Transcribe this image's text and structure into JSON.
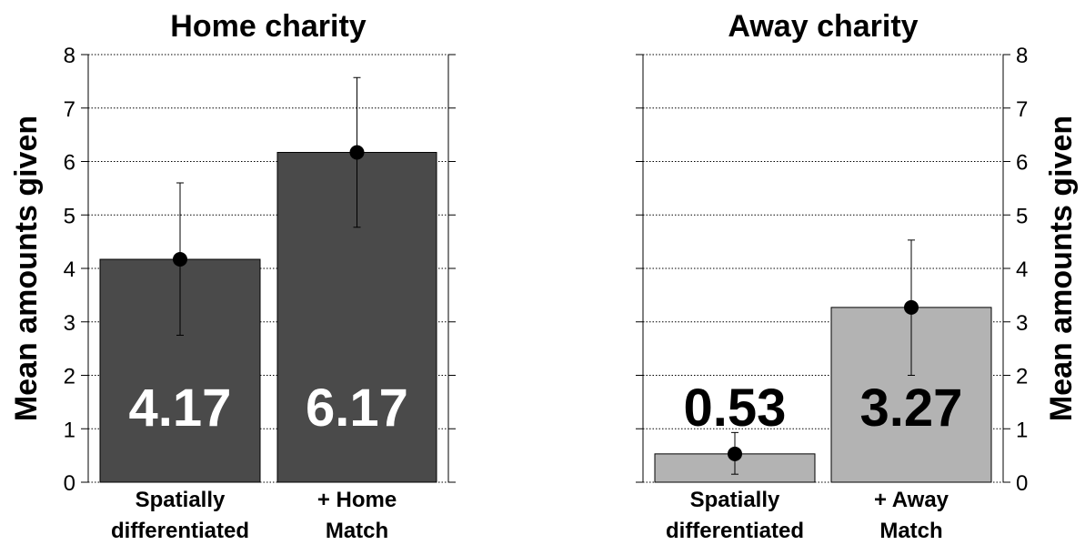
{
  "chart_data": [
    {
      "type": "bar",
      "title": "Home charity",
      "ylabel": "Mean amounts given",
      "ylim": [
        0,
        8
      ],
      "yticks": [
        0,
        1,
        2,
        3,
        4,
        5,
        6,
        7,
        8
      ],
      "ytick_labels": [
        "0",
        "1",
        "2",
        "3",
        "4",
        "5",
        "6",
        "7",
        "8"
      ],
      "y_axis_side": "left",
      "grid": "horizontal dotted",
      "categories": [
        [
          "Spatially",
          "differentiated"
        ],
        [
          "+ Home",
          "Match"
        ]
      ],
      "values": [
        4.17,
        6.17
      ],
      "value_labels": [
        "4.17",
        "6.17"
      ],
      "error_low": [
        2.75,
        4.77
      ],
      "error_high": [
        5.6,
        7.57
      ],
      "bar_color": "#4a4a4a",
      "label_color": "#ffffff"
    },
    {
      "type": "bar",
      "title": "Away charity",
      "ylabel": "Mean amounts given",
      "ylim": [
        0,
        8
      ],
      "yticks": [
        0,
        1,
        2,
        3,
        4,
        5,
        6,
        7,
        8
      ],
      "ytick_labels": [
        "0",
        "1",
        "2",
        "3",
        "4",
        "5",
        "6",
        "7",
        "8"
      ],
      "y_axis_side": "right",
      "grid": "horizontal dotted",
      "categories": [
        [
          "Spatially",
          "differentiated"
        ],
        [
          "+ Away",
          "Match"
        ]
      ],
      "values": [
        0.53,
        3.27
      ],
      "value_labels": [
        "0.53",
        "3.27"
      ],
      "error_low": [
        0.15,
        2.0
      ],
      "error_high": [
        0.93,
        4.53
      ],
      "bar_color": "#b3b3b3",
      "label_color": "#000000"
    }
  ]
}
